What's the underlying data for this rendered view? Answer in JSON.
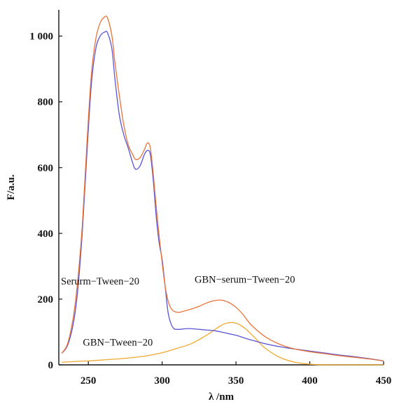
{
  "chart_data": {
    "type": "line",
    "title": "",
    "xlabel": "λ /nm",
    "ylabel": "F/a.u.",
    "xlim": [
      230,
      450
    ],
    "ylim": [
      0,
      1080
    ],
    "x_ticks": [
      250,
      300,
      350,
      400,
      450
    ],
    "x_tick_labels": [
      "250",
      "300",
      "350",
      "400",
      "450"
    ],
    "y_ticks": [
      0,
      200,
      400,
      600,
      800,
      1000
    ],
    "y_tick_labels": [
      "0",
      "200",
      "400",
      "600",
      "800",
      "1 000"
    ],
    "grid": false,
    "legend": "none",
    "series": [
      {
        "name": "Serurm-Tween-20",
        "color": "#5a55d6",
        "x": [
          232,
          236,
          240,
          243,
          246,
          249,
          252,
          255,
          258,
          261,
          263,
          266,
          268,
          271,
          274,
          277,
          280,
          282,
          285,
          288,
          290,
          292,
          294,
          296,
          298,
          300,
          302,
          304,
          306,
          308,
          310,
          312,
          316,
          320,
          325,
          330,
          335,
          340,
          345,
          350,
          355,
          360,
          370,
          380,
          390,
          400,
          410,
          420,
          430,
          440,
          450
        ],
        "y": [
          35,
          60,
          130,
          235,
          410,
          640,
          850,
          960,
          1000,
          1012,
          1010,
          960,
          870,
          760,
          700,
          660,
          615,
          595,
          605,
          640,
          652,
          640,
          560,
          450,
          370,
          320,
          240,
          160,
          125,
          110,
          108,
          108,
          110,
          110,
          108,
          106,
          104,
          100,
          95,
          90,
          83,
          76,
          64,
          55,
          48,
          42,
          36,
          30,
          25,
          19,
          12
        ]
      },
      {
        "name": "GBN-serum-Tween-20",
        "color": "#e8733a",
        "x": [
          232,
          236,
          240,
          243,
          246,
          249,
          252,
          255,
          258,
          261,
          263,
          266,
          268,
          271,
          274,
          277,
          280,
          282,
          285,
          288,
          290,
          292,
          294,
          296,
          298,
          300,
          302,
          304,
          306,
          308,
          310,
          312,
          316,
          320,
          325,
          330,
          335,
          340,
          345,
          350,
          355,
          360,
          370,
          380,
          390,
          400,
          410,
          420,
          430,
          440,
          450
        ],
        "y": [
          35,
          65,
          150,
          265,
          430,
          670,
          880,
          990,
          1040,
          1058,
          1055,
          1000,
          920,
          820,
          730,
          670,
          640,
          625,
          630,
          655,
          675,
          660,
          580,
          480,
          390,
          310,
          240,
          195,
          172,
          163,
          160,
          160,
          165,
          170,
          178,
          188,
          195,
          197,
          190,
          175,
          152,
          123,
          85,
          62,
          48,
          40,
          34,
          28,
          23,
          18,
          12
        ]
      },
      {
        "name": "GBN-Tween-20",
        "color": "#f0a830",
        "x": [
          232,
          240,
          250,
          260,
          270,
          280,
          290,
          300,
          310,
          320,
          330,
          335,
          340,
          345,
          350,
          355,
          360,
          365,
          370,
          380,
          390,
          400,
          410,
          420,
          430,
          450
        ],
        "y": [
          8,
          10,
          12,
          15,
          18,
          22,
          28,
          37,
          50,
          65,
          90,
          105,
          120,
          128,
          127,
          115,
          95,
          72,
          50,
          22,
          8,
          2,
          0,
          0,
          0,
          0
        ]
      }
    ],
    "annotations": [
      {
        "text": "Serurm−Tween−20",
        "x": 258,
        "y": 245
      },
      {
        "text": "GBN−serum−Tween−20",
        "x": 356,
        "y": 250
      },
      {
        "text": "GBN−Tween−20",
        "x": 270,
        "y": 58
      }
    ]
  }
}
